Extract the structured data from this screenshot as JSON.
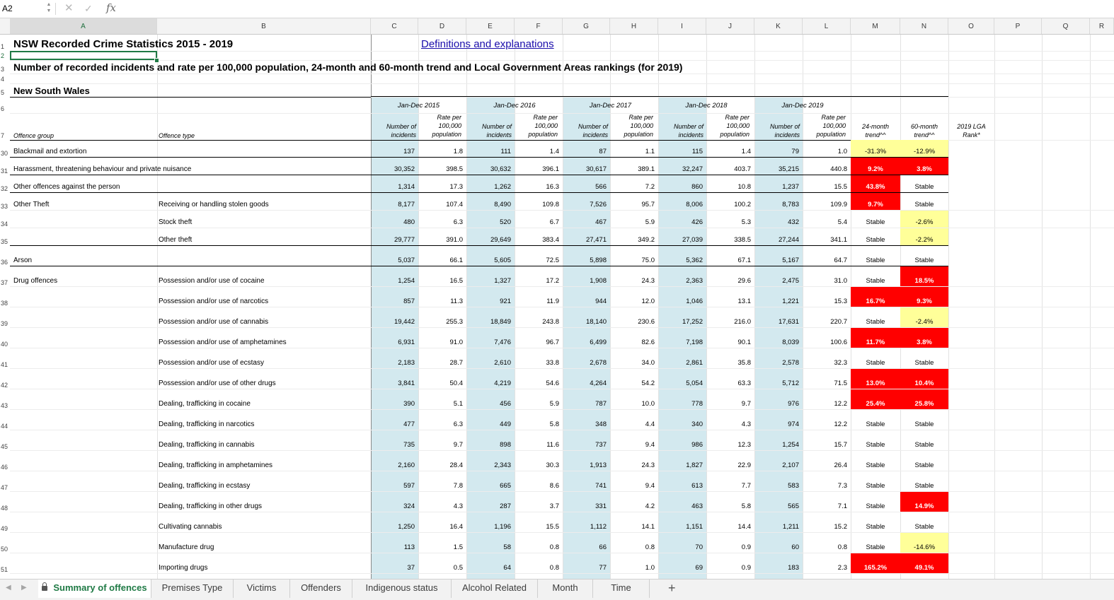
{
  "formula_bar": {
    "name_box": "A2",
    "formula": "",
    "fx_label": "fx",
    "cancel_icon": "✕",
    "confirm_icon": "✓"
  },
  "columns": [
    "A",
    "B",
    "C",
    "D",
    "E",
    "F",
    "G",
    "H",
    "I",
    "J",
    "K",
    "L",
    "M",
    "N",
    "O",
    "P",
    "Q",
    "R"
  ],
  "selected_column": "A",
  "title": "NSW Recorded Crime Statistics 2015 - 2019",
  "link": "Definitions and explanations",
  "subtitle": "Number of recorded incidents and rate per 100,000 population, 24-month and 60-month trend and Local Government Areas rankings (for 2019)",
  "region": "New South Wales",
  "header_rows": [
    "1",
    "2",
    "3",
    "4",
    "5",
    "6",
    "7"
  ],
  "headers": {
    "offence_group": "Offence group",
    "offence_type": "Offence type",
    "years": [
      "Jan-Dec 2015",
      "Jan-Dec 2016",
      "Jan-Dec 2017",
      "Jan-Dec 2018",
      "Jan-Dec 2019"
    ],
    "count_label": [
      "Number of",
      "incidents"
    ],
    "rate_label": [
      "Rate per",
      "100,000",
      "population"
    ],
    "trend24": [
      "24-month",
      "trend^^"
    ],
    "trend60": [
      "60-month",
      "trend^^"
    ],
    "rank": [
      "2019 LGA",
      "Rank*"
    ]
  },
  "rows": [
    {
      "row": "30",
      "group": "Blackmail and extortion",
      "type": "",
      "vals": [
        "137",
        "1.8",
        "111",
        "1.4",
        "87",
        "1.1",
        "115",
        "1.4",
        "79",
        "1.0"
      ],
      "t24": "-31.3%",
      "t24c": "yellow",
      "t60": "-12.9%",
      "t60c": "yellow",
      "rule": true
    },
    {
      "row": "31",
      "group": "Harassment, threatening behaviour and private nuisance",
      "type": "",
      "vals": [
        "30,352",
        "398.5",
        "30,632",
        "396.1",
        "30,617",
        "389.1",
        "32,247",
        "403.7",
        "35,215",
        "440.8"
      ],
      "t24": "9.2%",
      "t24c": "red",
      "t60": "3.8%",
      "t60c": "red",
      "rule": true
    },
    {
      "row": "32",
      "group": "Other offences against the person",
      "type": "",
      "vals": [
        "1,314",
        "17.3",
        "1,262",
        "16.3",
        "566",
        "7.2",
        "860",
        "10.8",
        "1,237",
        "15.5"
      ],
      "t24": "43.8%",
      "t24c": "red",
      "t60": "Stable",
      "t60c": "",
      "rule": true
    },
    {
      "row": "33",
      "group": "Other Theft",
      "type": "Receiving or handling stolen goods",
      "vals": [
        "8,177",
        "107.4",
        "8,490",
        "109.8",
        "7,526",
        "95.7",
        "8,006",
        "100.2",
        "8,783",
        "109.9"
      ],
      "t24": "9.7%",
      "t24c": "red",
      "t60": "Stable",
      "t60c": "",
      "rule": false
    },
    {
      "row": "34",
      "group": "",
      "type": "Stock theft",
      "vals": [
        "480",
        "6.3",
        "520",
        "6.7",
        "467",
        "5.9",
        "426",
        "5.3",
        "432",
        "5.4"
      ],
      "t24": "Stable",
      "t24c": "",
      "t60": "-2.6%",
      "t60c": "yellow",
      "rule": false
    },
    {
      "row": "35",
      "group": "",
      "type": "Other theft",
      "vals": [
        "29,777",
        "391.0",
        "29,649",
        "383.4",
        "27,471",
        "349.2",
        "27,039",
        "338.5",
        "27,244",
        "341.1"
      ],
      "t24": "Stable",
      "t24c": "",
      "t60": "-2.2%",
      "t60c": "yellow",
      "rule": true
    },
    {
      "row": "36",
      "group": "Arson",
      "type": "",
      "vals": [
        "5,037",
        "66.1",
        "5,605",
        "72.5",
        "5,898",
        "75.0",
        "5,362",
        "67.1",
        "5,167",
        "64.7"
      ],
      "t24": "Stable",
      "t24c": "",
      "t60": "Stable",
      "t60c": "",
      "rule": true
    },
    {
      "row": "37",
      "group": "Drug offences",
      "type": "Possession and/or use of cocaine",
      "vals": [
        "1,254",
        "16.5",
        "1,327",
        "17.2",
        "1,908",
        "24.3",
        "2,363",
        "29.6",
        "2,475",
        "31.0"
      ],
      "t24": "Stable",
      "t24c": "",
      "t60": "18.5%",
      "t60c": "red",
      "rule": false
    },
    {
      "row": "38",
      "group": "",
      "type": "Possession and/or use of narcotics",
      "vals": [
        "857",
        "11.3",
        "921",
        "11.9",
        "944",
        "12.0",
        "1,046",
        "13.1",
        "1,221",
        "15.3"
      ],
      "t24": "16.7%",
      "t24c": "red",
      "t60": "9.3%",
      "t60c": "red",
      "rule": false
    },
    {
      "row": "39",
      "group": "",
      "type": "Possession and/or use of cannabis",
      "vals": [
        "19,442",
        "255.3",
        "18,849",
        "243.8",
        "18,140",
        "230.6",
        "17,252",
        "216.0",
        "17,631",
        "220.7"
      ],
      "t24": "Stable",
      "t24c": "",
      "t60": "-2.4%",
      "t60c": "yellow",
      "rule": false
    },
    {
      "row": "40",
      "group": "",
      "type": "Possession and/or use of amphetamines",
      "vals": [
        "6,931",
        "91.0",
        "7,476",
        "96.7",
        "6,499",
        "82.6",
        "7,198",
        "90.1",
        "8,039",
        "100.6"
      ],
      "t24": "11.7%",
      "t24c": "red",
      "t60": "3.8%",
      "t60c": "red",
      "rule": false
    },
    {
      "row": "41",
      "group": "",
      "type": "Possession and/or use of ecstasy",
      "vals": [
        "2,183",
        "28.7",
        "2,610",
        "33.8",
        "2,678",
        "34.0",
        "2,861",
        "35.8",
        "2,578",
        "32.3"
      ],
      "t24": "Stable",
      "t24c": "",
      "t60": "Stable",
      "t60c": "",
      "rule": false
    },
    {
      "row": "42",
      "group": "",
      "type": "Possession and/or use of other drugs",
      "vals": [
        "3,841",
        "50.4",
        "4,219",
        "54.6",
        "4,264",
        "54.2",
        "5,054",
        "63.3",
        "5,712",
        "71.5"
      ],
      "t24": "13.0%",
      "t24c": "red",
      "t60": "10.4%",
      "t60c": "red",
      "rule": false
    },
    {
      "row": "43",
      "group": "",
      "type": "Dealing, trafficking in cocaine",
      "vals": [
        "390",
        "5.1",
        "456",
        "5.9",
        "787",
        "10.0",
        "778",
        "9.7",
        "976",
        "12.2"
      ],
      "t24": "25.4%",
      "t24c": "red",
      "t60": "25.8%",
      "t60c": "red",
      "rule": false
    },
    {
      "row": "44",
      "group": "",
      "type": "Dealing, trafficking in narcotics",
      "vals": [
        "477",
        "6.3",
        "449",
        "5.8",
        "348",
        "4.4",
        "340",
        "4.3",
        "974",
        "12.2"
      ],
      "t24": "Stable",
      "t24c": "",
      "t60": "Stable",
      "t60c": "",
      "rule": false
    },
    {
      "row": "45",
      "group": "",
      "type": "Dealing, trafficking in cannabis",
      "vals": [
        "735",
        "9.7",
        "898",
        "11.6",
        "737",
        "9.4",
        "986",
        "12.3",
        "1,254",
        "15.7"
      ],
      "t24": "Stable",
      "t24c": "",
      "t60": "Stable",
      "t60c": "",
      "rule": false
    },
    {
      "row": "46",
      "group": "",
      "type": "Dealing, trafficking in amphetamines",
      "vals": [
        "2,160",
        "28.4",
        "2,343",
        "30.3",
        "1,913",
        "24.3",
        "1,827",
        "22.9",
        "2,107",
        "26.4"
      ],
      "t24": "Stable",
      "t24c": "",
      "t60": "Stable",
      "t60c": "",
      "rule": false
    },
    {
      "row": "47",
      "group": "",
      "type": "Dealing, trafficking in ecstasy",
      "vals": [
        "597",
        "7.8",
        "665",
        "8.6",
        "741",
        "9.4",
        "613",
        "7.7",
        "583",
        "7.3"
      ],
      "t24": "Stable",
      "t24c": "",
      "t60": "Stable",
      "t60c": "",
      "rule": false
    },
    {
      "row": "48",
      "group": "",
      "type": "Dealing, trafficking in other drugs",
      "vals": [
        "324",
        "4.3",
        "287",
        "3.7",
        "331",
        "4.2",
        "463",
        "5.8",
        "565",
        "7.1"
      ],
      "t24": "Stable",
      "t24c": "",
      "t60": "14.9%",
      "t60c": "red",
      "rule": false
    },
    {
      "row": "49",
      "group": "",
      "type": "Cultivating cannabis",
      "vals": [
        "1,250",
        "16.4",
        "1,196",
        "15.5",
        "1,112",
        "14.1",
        "1,151",
        "14.4",
        "1,211",
        "15.2"
      ],
      "t24": "Stable",
      "t24c": "",
      "t60": "Stable",
      "t60c": "",
      "rule": false
    },
    {
      "row": "50",
      "group": "",
      "type": "Manufacture drug",
      "vals": [
        "113",
        "1.5",
        "58",
        "0.8",
        "66",
        "0.8",
        "70",
        "0.9",
        "60",
        "0.8"
      ],
      "t24": "Stable",
      "t24c": "",
      "t60": "-14.6%",
      "t60c": "yellow",
      "rule": false
    },
    {
      "row": "51",
      "group": "",
      "type": "Importing drugs",
      "vals": [
        "37",
        "0.5",
        "64",
        "0.8",
        "77",
        "1.0",
        "69",
        "0.9",
        "183",
        "2.3"
      ],
      "t24": "165.2%",
      "t24c": "red",
      "t60": "49.1%",
      "t60c": "red",
      "rule": false
    }
  ],
  "colors": {
    "red": "#ff0000",
    "yellow": "#ffff99",
    "band": "#d3e9ef",
    "accent": "#1f7a45"
  },
  "tabs": [
    "Summary of offences",
    "Premises Type",
    "Victims",
    "Offenders",
    "Indigenous status",
    "Alcohol Related",
    "Month",
    "Time"
  ],
  "active_tab": "Summary of offences",
  "tab_nav": {
    "prev_icon": "◀",
    "next_icon": "▶",
    "add_icon": "+"
  }
}
